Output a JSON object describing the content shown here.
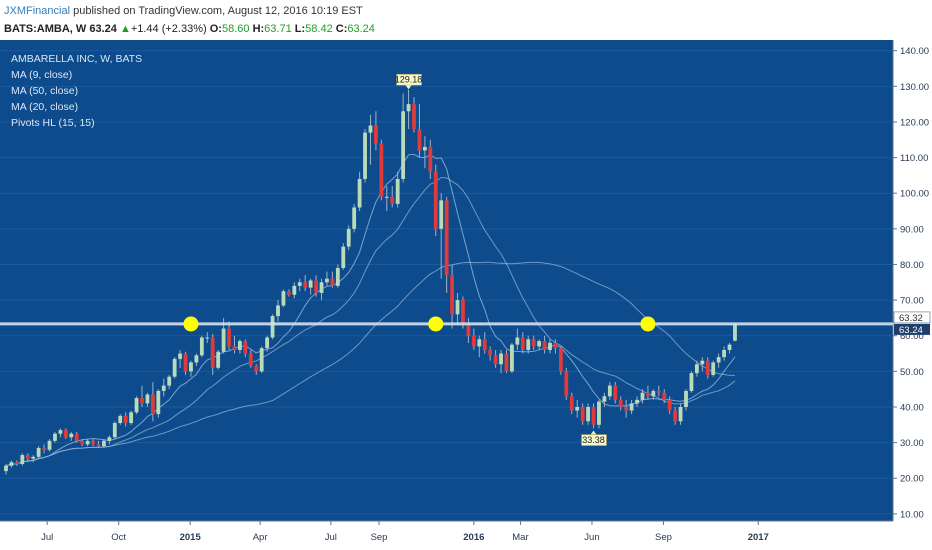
{
  "header": {
    "author": "JXMFinancial",
    "published": "published on TradingView.com, August 12, 2016 10:19 EST",
    "symbol": "BATS:AMBA, W",
    "price": "63.24",
    "change_arrow": "▲",
    "change": "+1.44 (+2.33%)",
    "o_label": "O:",
    "o_value": "58.60",
    "h_label": "H:",
    "h_value": "63.71",
    "l_label": "L:",
    "l_value": "58.42",
    "c_label": "C:",
    "c_value": "63.24"
  },
  "indicators": [
    "AMBARELLA INC, W, BATS",
    "MA (9, close)",
    "MA (50, close)",
    "MA (20, close)",
    "Pivots HL (15, 15)"
  ],
  "colors": {
    "background": "#0e4b8c",
    "candle_up": "#b8dcb8",
    "candle_down": "#e03a3a",
    "wick": "#9ab2cc",
    "hline": "#d6e2f0",
    "ma": "#8fb3d6",
    "marker": "#ffff00"
  },
  "chart_data": {
    "type": "candlestick",
    "title": "AMBARELLA INC, W, BATS",
    "interval": "W",
    "ylim": [
      8,
      143
    ],
    "y_ticks": [
      "140.00",
      "130.00",
      "120.00",
      "110.00",
      "100.00",
      "90.00",
      "80.00",
      "70.00",
      "60.00",
      "50.00",
      "40.00",
      "30.00",
      "20.00",
      "10.00"
    ],
    "x_ticks": [
      {
        "label": "Jul",
        "date": "2014-07-01",
        "bold": false
      },
      {
        "label": "Oct",
        "date": "2014-10-01",
        "bold": false
      },
      {
        "label": "2015",
        "date": "2015-01-01",
        "bold": true
      },
      {
        "label": "Apr",
        "date": "2015-04-01",
        "bold": false
      },
      {
        "label": "Jul",
        "date": "2015-07-01",
        "bold": false
      },
      {
        "label": "Sep",
        "date": "2015-09-01",
        "bold": false
      },
      {
        "label": "2016",
        "date": "2016-01-01",
        "bold": true
      },
      {
        "label": "Mar",
        "date": "2016-03-01",
        "bold": false
      },
      {
        "label": "Jun",
        "date": "2016-06-01",
        "bold": false
      },
      {
        "label": "Sep",
        "date": "2016-09-01",
        "bold": false
      },
      {
        "label": "2017",
        "date": "2017-01-01",
        "bold": true
      }
    ],
    "first_week": "2014-05-09",
    "weeks_visible": 140,
    "candles": [
      [
        22,
        24,
        21,
        23.5
      ],
      [
        23.5,
        25,
        23,
        24.5
      ],
      [
        24.5,
        25,
        23.5,
        24
      ],
      [
        24,
        27,
        23.5,
        26.5
      ],
      [
        26.5,
        27,
        24.5,
        25.5
      ],
      [
        25.5,
        26.5,
        24.5,
        26
      ],
      [
        26,
        29,
        25.5,
        28.5
      ],
      [
        28.5,
        29.5,
        27,
        28
      ],
      [
        28,
        31,
        27.5,
        30.5
      ],
      [
        30.5,
        33,
        30,
        32.5
      ],
      [
        32.5,
        34,
        31.5,
        33.5
      ],
      [
        33.5,
        34,
        31,
        31.5
      ],
      [
        31.5,
        33,
        30.5,
        32.5
      ],
      [
        32.5,
        33,
        30,
        30.5
      ],
      [
        30.5,
        31,
        29,
        29.5
      ],
      [
        29.5,
        31,
        29,
        30.5
      ],
      [
        30.5,
        31,
        29,
        29.5
      ],
      [
        29.5,
        30.5,
        28.5,
        29
      ],
      [
        29,
        31,
        28.5,
        30.5
      ],
      [
        30.5,
        32,
        29.5,
        31.5
      ],
      [
        31.5,
        36,
        31,
        35.5
      ],
      [
        35.5,
        38,
        35,
        37.5
      ],
      [
        37.5,
        38.5,
        34.5,
        35.5
      ],
      [
        35.5,
        39,
        35,
        38.5
      ],
      [
        38.5,
        43,
        38,
        42.5
      ],
      [
        42.5,
        46,
        40,
        41
      ],
      [
        41,
        44,
        40,
        43.5
      ],
      [
        43.5,
        47,
        36,
        38
      ],
      [
        38,
        45,
        37,
        44.5
      ],
      [
        44.5,
        48,
        43,
        46
      ],
      [
        46,
        49,
        45,
        48.5
      ],
      [
        48.5,
        54,
        48,
        53.5
      ],
      [
        53.5,
        56,
        51,
        55
      ],
      [
        55,
        55.5,
        49,
        50
      ],
      [
        50,
        53,
        48.5,
        52.5
      ],
      [
        52.5,
        55,
        51.5,
        54.5
      ],
      [
        54.5,
        60,
        54,
        59.5
      ],
      [
        59.5,
        61,
        58,
        59.5
      ],
      [
        59.5,
        60.5,
        49,
        51
      ],
      [
        51,
        56,
        50.5,
        55.5
      ],
      [
        55.5,
        65,
        55,
        62
      ],
      [
        62,
        64,
        56,
        57
      ],
      [
        57,
        60,
        55,
        56
      ],
      [
        56,
        59,
        55,
        58.5
      ],
      [
        58.5,
        59,
        54,
        55
      ],
      [
        55,
        56,
        51,
        51.5
      ],
      [
        51.5,
        52,
        49,
        50
      ],
      [
        50,
        57,
        49.5,
        56.5
      ],
      [
        56.5,
        60,
        55.5,
        59.5
      ],
      [
        59.5,
        66,
        59,
        65.5
      ],
      [
        65.5,
        70,
        64,
        68.5
      ],
      [
        68.5,
        73,
        68,
        72.5
      ],
      [
        72.5,
        73,
        71,
        71.5
      ],
      [
        71.5,
        75,
        70.5,
        74
      ],
      [
        74,
        76,
        72.5,
        75
      ],
      [
        75,
        77,
        72.5,
        73.5
      ],
      [
        73.5,
        76,
        71.5,
        75.5
      ],
      [
        75.5,
        77,
        71,
        72
      ],
      [
        72,
        76,
        70,
        75
      ],
      [
        75,
        78,
        74,
        76
      ],
      [
        76,
        78,
        73.5,
        74
      ],
      [
        74,
        80,
        73.5,
        79
      ],
      [
        79,
        86,
        78.5,
        85
      ],
      [
        85,
        91,
        84,
        90
      ],
      [
        90,
        97,
        89,
        96
      ],
      [
        96,
        106,
        95,
        104
      ],
      [
        104,
        118,
        103,
        117
      ],
      [
        117,
        122,
        108,
        119
      ],
      [
        119,
        123,
        112,
        114
      ],
      [
        114,
        115,
        98,
        99
      ],
      [
        99,
        102,
        95,
        99
      ],
      [
        99,
        102,
        96,
        97
      ],
      [
        97,
        106,
        96,
        104
      ],
      [
        104,
        128,
        103,
        123
      ],
      [
        123,
        129,
        118,
        125
      ],
      [
        125,
        127,
        117,
        118
      ],
      [
        118,
        125,
        110,
        112
      ],
      [
        112,
        116,
        107,
        113
      ],
      [
        113,
        115,
        104,
        106
      ],
      [
        106,
        108,
        88,
        90
      ],
      [
        90,
        100,
        76,
        98
      ],
      [
        98,
        99,
        72,
        77
      ],
      [
        77,
        80,
        62,
        66
      ],
      [
        66,
        72,
        63,
        70
      ],
      [
        70,
        71,
        62,
        63.5
      ],
      [
        63.5,
        65,
        58,
        60
      ],
      [
        60,
        62,
        56,
        57
      ],
      [
        57,
        60,
        54,
        59
      ],
      [
        59,
        61,
        55,
        56
      ],
      [
        56,
        57,
        53,
        54.5
      ],
      [
        54.5,
        56,
        51,
        52
      ],
      [
        52,
        56,
        49.5,
        55
      ],
      [
        55,
        56,
        49.5,
        50
      ],
      [
        50,
        58,
        49.5,
        57.5
      ],
      [
        57.5,
        62,
        56,
        59.5
      ],
      [
        59.5,
        61,
        55,
        56
      ],
      [
        56,
        60,
        55,
        59
      ],
      [
        59,
        60,
        56,
        57
      ],
      [
        57,
        59,
        56,
        58.5
      ],
      [
        58.5,
        60,
        55,
        56
      ],
      [
        56,
        59,
        55,
        58
      ],
      [
        58,
        59,
        55,
        56.5
      ],
      [
        56.5,
        57,
        49,
        50
      ],
      [
        50,
        51,
        42,
        43
      ],
      [
        43,
        44,
        38,
        39
      ],
      [
        39,
        42,
        37,
        40
      ],
      [
        40,
        41,
        35,
        36
      ],
      [
        36,
        41,
        35,
        40
      ],
      [
        40,
        41,
        34,
        35
      ],
      [
        35,
        42,
        34,
        41.5
      ],
      [
        41.5,
        44,
        40,
        43
      ],
      [
        43,
        47,
        42,
        46
      ],
      [
        46,
        47,
        41,
        42
      ],
      [
        42,
        43,
        39,
        40
      ],
      [
        40,
        42,
        37,
        39
      ],
      [
        39,
        42,
        38,
        41
      ],
      [
        41,
        43,
        40,
        42
      ],
      [
        42,
        45,
        41,
        44
      ],
      [
        44,
        46,
        42,
        43
      ],
      [
        43,
        45,
        42,
        44.5
      ],
      [
        44.5,
        46,
        43,
        44
      ],
      [
        44,
        45,
        41,
        42
      ],
      [
        42,
        43,
        38,
        39
      ],
      [
        39,
        40,
        35,
        36
      ],
      [
        36,
        41,
        35,
        40
      ],
      [
        40,
        45,
        39,
        44.5
      ],
      [
        44.5,
        50,
        44,
        49.5
      ],
      [
        49.5,
        53,
        48.5,
        52
      ],
      [
        52,
        54,
        50,
        53
      ],
      [
        53,
        54,
        48,
        49
      ],
      [
        49,
        53,
        48.5,
        52.5
      ],
      [
        52.5,
        55,
        51,
        54
      ],
      [
        54,
        57,
        53,
        56
      ],
      [
        56,
        58,
        55,
        57.5
      ],
      [
        58.6,
        63.71,
        58.42,
        63.24
      ]
    ],
    "horizontal_line": 63.32,
    "current_price": 63.24,
    "price_labels": [
      "63.32",
      "63.24"
    ],
    "pivot_high": {
      "label": "129.18",
      "value": 129.18
    },
    "pivot_low": {
      "label": "33.38",
      "value": 33.38
    },
    "markers": [
      {
        "date": "2015-01-02",
        "value": 63.3
      },
      {
        "date": "2015-11-13",
        "value": 63.3
      },
      {
        "date": "2016-08-12",
        "value": 63.3
      }
    ],
    "ma_series": [
      {
        "name": "MA (9, close)"
      },
      {
        "name": "MA (50, close)"
      },
      {
        "name": "MA (20, close)"
      }
    ]
  }
}
